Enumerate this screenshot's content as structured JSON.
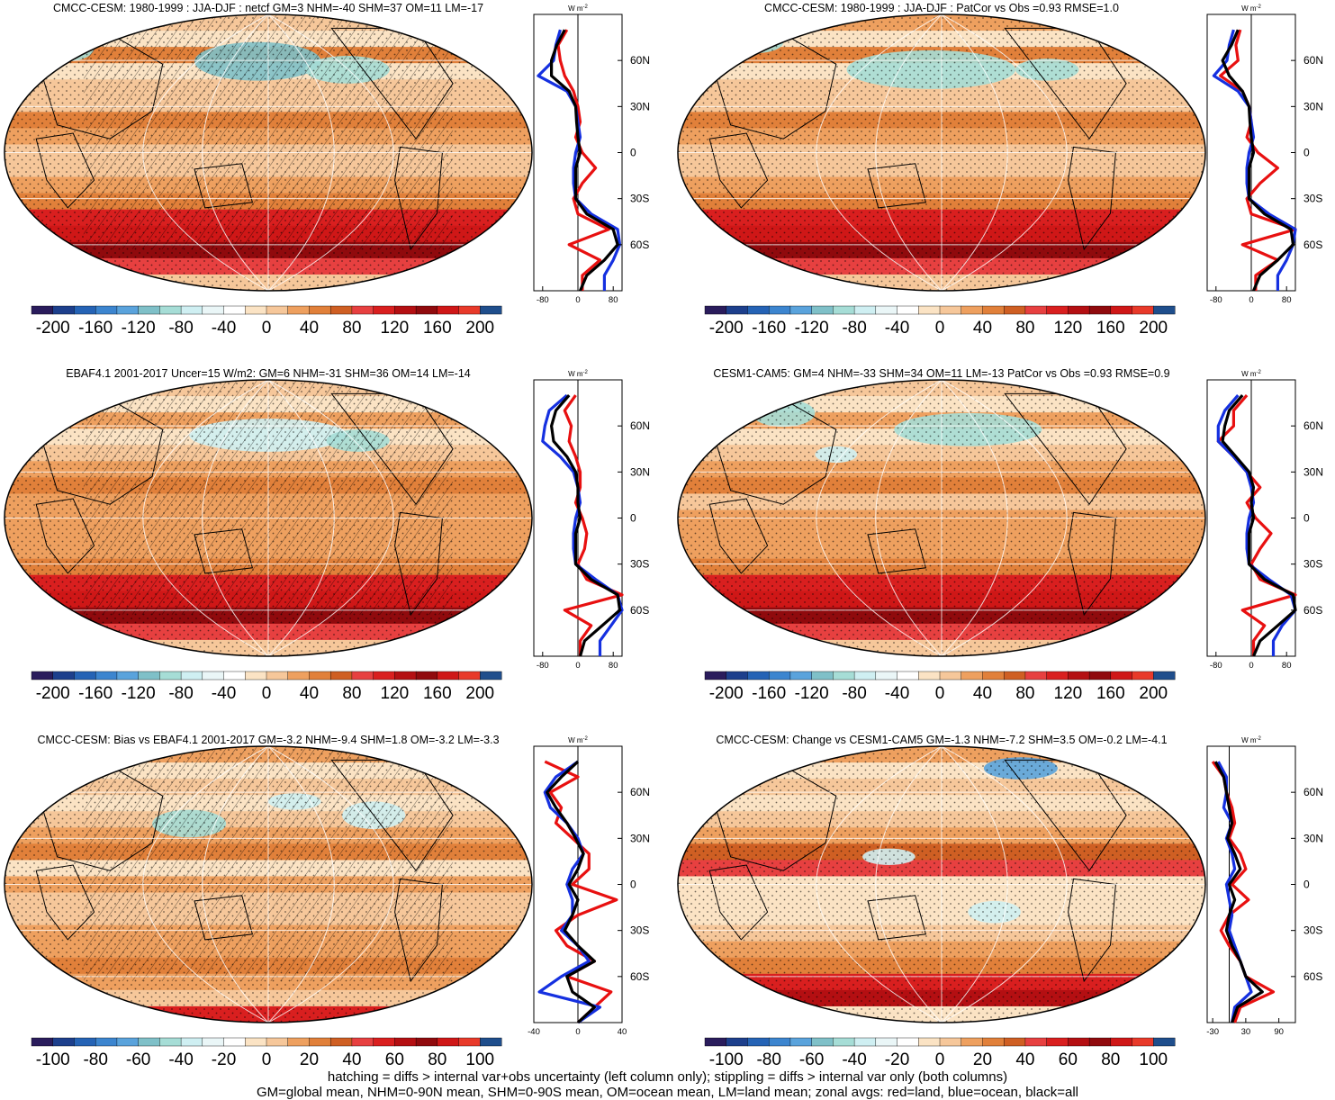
{
  "palettes": {
    "diverging_22": [
      "#2a1c5c",
      "#1d3f8c",
      "#2563b5",
      "#3c85cf",
      "#5aa3dc",
      "#7fc0c8",
      "#a6ddd6",
      "#cfeff2",
      "#eaf6f7",
      "#ffffff",
      "#fbe3c4",
      "#f6c79a",
      "#eea05f",
      "#e1803a",
      "#cf5f23",
      "#e74040",
      "#d91f1f",
      "#b40f12",
      "#900a0d",
      "#cf1717",
      "#e83a2a",
      "#1f4e8c"
    ]
  },
  "colorbars": {
    "full": [
      "-200",
      "-160",
      "-120",
      "-80",
      "-40",
      "0",
      "40",
      "80",
      "120",
      "160",
      "200"
    ],
    "diff_left": [
      "-100",
      "-80",
      "-60",
      "-40",
      "-20",
      "0",
      "20",
      "40",
      "60",
      "80",
      "100"
    ],
    "diff_right": [
      "-100",
      "-80",
      "-60",
      "-40",
      "-20",
      "0",
      "20",
      "40",
      "60",
      "80",
      "100"
    ]
  },
  "zonal_units": "W m",
  "zonal_units_exp": "-2",
  "lat_ticks": [
    "60N",
    "30N",
    "0",
    "30S",
    "60S"
  ],
  "zonal_ticks": {
    "full": [
      "-80",
      "0",
      "80"
    ],
    "diff_left": [
      "-40",
      "0",
      "40"
    ],
    "diff_right": [
      "-30",
      "30",
      "90"
    ]
  },
  "panels": [
    {
      "id": "p1",
      "title": "CMCC-CESM: 1980-1999 : JJA-DJF : netcf GM=3 NHM=-40 SHM=37 OM=11 LM=-17",
      "hatch": true,
      "mode": "full"
    },
    {
      "id": "p2",
      "title": "CMCC-CESM: 1980-1999 : JJA-DJF : PatCor vs Obs =0.93 RMSE=1.0",
      "hatch": false,
      "mode": "full"
    },
    {
      "id": "p3",
      "title": "EBAF4.1 2001-2017 Uncer=15 W/m2: GM=6 NHM=-31 SHM=36 OM=14 LM=-14",
      "hatch": true,
      "mode": "full"
    },
    {
      "id": "p4",
      "title": "CESM1-CAM5: GM=4 NHM=-33 SHM=34 OM=11 LM=-13 PatCor vs Obs =0.93 RMSE=0.9",
      "hatch": false,
      "mode": "full"
    },
    {
      "id": "p5",
      "title": "CMCC-CESM: Bias vs EBAF4.1 2001-2017 GM=-3.2 NHM=-9.4 SHM=1.8 OM=-3.2 LM=-3.3",
      "hatch": true,
      "mode": "diff"
    },
    {
      "id": "p6",
      "title": "CMCC-CESM: Change vs CESM1-CAM5 GM=-1.3 NHM=-7.2 SHM=3.5 OM=-0.2 LM=-4.1",
      "hatch": false,
      "mode": "diff"
    }
  ],
  "chart_data": [
    {
      "type": "heatmap",
      "title": "CMCC-CESM: 1980-1999 : JJA-DJF : netcf GM=3 NHM=-40 SHM=37 OM=11 LM=-17",
      "colorbar_ticks": [
        -200,
        -160,
        -120,
        -80,
        -40,
        0,
        40,
        80,
        120,
        160,
        200
      ],
      "zonal_profile": {
        "ylim": [
          -90,
          90
        ],
        "xlim": [
          -100,
          100
        ],
        "xticks": [
          -80,
          0,
          80
        ],
        "lat": [
          80,
          70,
          60,
          50,
          40,
          30,
          20,
          10,
          0,
          -10,
          -20,
          -30,
          -40,
          -50,
          -60,
          -70,
          -80,
          -90
        ],
        "series": [
          {
            "name": "red=land",
            "values": [
              -25,
              -45,
              -40,
              -30,
              -10,
              0,
              5,
              -5,
              10,
              40,
              10,
              -10,
              0,
              70,
              -20,
              50,
              10,
              10
            ]
          },
          {
            "name": "blue=ocean",
            "values": [
              -40,
              -50,
              -55,
              -90,
              -25,
              -5,
              0,
              5,
              -5,
              -10,
              -10,
              -5,
              30,
              90,
              95,
              80,
              60,
              60
            ]
          },
          {
            "name": "black=all",
            "values": [
              -30,
              -48,
              -60,
              -60,
              -20,
              -5,
              -3,
              0,
              5,
              -5,
              -5,
              -5,
              20,
              80,
              90,
              60,
              20,
              5
            ]
          }
        ]
      }
    },
    {
      "type": "heatmap",
      "title": "CMCC-CESM: 1980-1999 : JJA-DJF : PatCor vs Obs =0.93 RMSE=1.0",
      "colorbar_ticks": [
        -200,
        -160,
        -120,
        -80,
        -40,
        0,
        40,
        80,
        120,
        160,
        200
      ],
      "zonal_profile": {
        "ylim": [
          -90,
          90
        ],
        "xlim": [
          -100,
          100
        ],
        "xticks": [
          -80,
          0,
          80
        ],
        "lat": [
          80,
          70,
          60,
          50,
          40,
          30,
          20,
          10,
          0,
          -10,
          -20,
          -30,
          -40,
          -50,
          -60,
          -70,
          -80,
          -90
        ],
        "series": [
          {
            "name": "red=land",
            "values": [
              -25,
              -35,
              -30,
              -70,
              -20,
              -5,
              0,
              -10,
              15,
              60,
              20,
              -10,
              0,
              100,
              -20,
              60,
              10,
              10
            ]
          },
          {
            "name": "blue=ocean",
            "values": [
              -40,
              -50,
              -55,
              -85,
              -30,
              -5,
              0,
              5,
              -5,
              -10,
              -10,
              -5,
              40,
              100,
              95,
              80,
              60,
              60
            ]
          },
          {
            "name": "black=all",
            "values": [
              -30,
              -45,
              -65,
              -50,
              -20,
              -5,
              -3,
              0,
              5,
              -5,
              -5,
              -5,
              30,
              90,
              95,
              60,
              20,
              5
            ]
          }
        ]
      }
    },
    {
      "type": "heatmap",
      "title": "EBAF4.1 2001-2017 Uncer=15 W/m2: GM=6 NHM=-31 SHM=36 OM=14 LM=-14",
      "colorbar_ticks": [
        -200,
        -160,
        -120,
        -80,
        -40,
        0,
        40,
        80,
        120,
        160,
        200
      ],
      "zonal_profile": {
        "ylim": [
          -90,
          90
        ],
        "xlim": [
          -100,
          100
        ],
        "xticks": [
          -80,
          0,
          80
        ],
        "lat": [
          80,
          70,
          60,
          50,
          40,
          30,
          20,
          10,
          0,
          -10,
          -20,
          -30,
          -40,
          -50,
          -60,
          -70,
          -80,
          -90
        ],
        "series": [
          {
            "name": "red=land",
            "values": [
              -5,
              -30,
              -15,
              -20,
              -5,
              5,
              5,
              -5,
              10,
              20,
              15,
              0,
              20,
              100,
              -30,
              30,
              5,
              5
            ]
          },
          {
            "name": "blue=ocean",
            "values": [
              -25,
              -65,
              -75,
              -80,
              -40,
              -10,
              0,
              5,
              -5,
              -10,
              -10,
              -5,
              40,
              90,
              100,
              75,
              50,
              50
            ]
          },
          {
            "name": "black=all",
            "values": [
              -20,
              -50,
              -60,
              -55,
              -25,
              -5,
              0,
              0,
              5,
              -5,
              -5,
              -5,
              30,
              90,
              95,
              55,
              15,
              5
            ]
          }
        ]
      }
    },
    {
      "type": "heatmap",
      "title": "CESM1-CAM5: GM=4 NHM=-33 SHM=34 OM=11 LM=-13 PatCor vs Obs =0.93 RMSE=0.9",
      "colorbar_ticks": [
        -200,
        -160,
        -120,
        -80,
        -40,
        0,
        40,
        80,
        120,
        160,
        200
      ],
      "zonal_profile": {
        "ylim": [
          -90,
          90
        ],
        "xlim": [
          -100,
          100
        ],
        "xticks": [
          -80,
          0,
          80
        ],
        "lat": [
          80,
          70,
          60,
          50,
          40,
          30,
          20,
          10,
          0,
          -10,
          -20,
          -30,
          -40,
          -50,
          -60,
          -70,
          -80,
          -90
        ],
        "series": [
          {
            "name": "red=land",
            "values": [
              -10,
              -40,
              -40,
              -75,
              -40,
              -10,
              20,
              -10,
              10,
              45,
              20,
              0,
              20,
              100,
              -20,
              30,
              5,
              5
            ]
          },
          {
            "name": "blue=ocean",
            "values": [
              -30,
              -60,
              -75,
              -75,
              -40,
              -10,
              0,
              5,
              -5,
              -10,
              -10,
              -5,
              40,
              90,
              100,
              70,
              50,
              50
            ]
          },
          {
            "name": "black=all",
            "values": [
              -20,
              -50,
              -60,
              -65,
              -35,
              -5,
              5,
              0,
              5,
              -5,
              -5,
              -5,
              30,
              95,
              100,
              60,
              20,
              5
            ]
          }
        ]
      }
    },
    {
      "type": "heatmap",
      "title": "CMCC-CESM: Bias vs EBAF4.1 2001-2017 GM=-3.2 NHM=-9.4 SHM=1.8 OM=-3.2 LM=-3.3",
      "colorbar_ticks": [
        -100,
        -80,
        -60,
        -40,
        -20,
        0,
        20,
        40,
        60,
        80,
        100
      ],
      "zonal_profile": {
        "ylim": [
          -90,
          90
        ],
        "xlim": [
          -40,
          40
        ],
        "xticks": [
          -40,
          0,
          40
        ],
        "lat": [
          80,
          70,
          60,
          50,
          40,
          30,
          20,
          10,
          0,
          -10,
          -20,
          -30,
          -40,
          -50,
          -60,
          -70,
          -80,
          -90
        ],
        "series": [
          {
            "name": "red=land",
            "values": [
              -30,
              0,
              -25,
              -15,
              -20,
              -5,
              10,
              10,
              -5,
              35,
              0,
              -20,
              -10,
              15,
              -10,
              30,
              15,
              0
            ]
          },
          {
            "name": "blue=ocean",
            "values": [
              0,
              -20,
              -30,
              -25,
              -10,
              0,
              5,
              -5,
              -10,
              -5,
              -5,
              -15,
              0,
              10,
              -15,
              -35,
              20,
              0
            ]
          },
          {
            "name": "black=all",
            "values": [
              0,
              -15,
              -28,
              -20,
              -10,
              -2,
              5,
              0,
              -8,
              0,
              -5,
              -12,
              0,
              15,
              -10,
              -5,
              15,
              0
            ]
          }
        ]
      }
    },
    {
      "type": "heatmap",
      "title": "CMCC-CESM: Change vs CESM1-CAM5 GM=-1.3 NHM=-7.2 SHM=3.5 OM=-0.2 LM=-4.1",
      "colorbar_ticks": [
        -100,
        -80,
        -60,
        -40,
        -20,
        0,
        20,
        40,
        60,
        80,
        100
      ],
      "zonal_profile": {
        "ylim": [
          -90,
          90
        ],
        "xlim": [
          -40,
          120
        ],
        "xticks": [
          -30,
          30,
          90
        ],
        "lat": [
          80,
          70,
          60,
          50,
          40,
          30,
          20,
          10,
          0,
          -10,
          -20,
          -30,
          -40,
          -50,
          -60,
          -70,
          -80,
          -90
        ],
        "series": [
          {
            "name": "red=land",
            "values": [
              -30,
              -10,
              -5,
              5,
              10,
              0,
              20,
              30,
              5,
              35,
              0,
              -15,
              0,
              20,
              30,
              80,
              20,
              10
            ]
          },
          {
            "name": "blue=ocean",
            "values": [
              -20,
              -5,
              -5,
              -10,
              5,
              -5,
              5,
              10,
              -5,
              0,
              5,
              0,
              10,
              20,
              30,
              40,
              10,
              5
            ]
          },
          {
            "name": "black=all",
            "values": [
              -25,
              -10,
              -5,
              0,
              5,
              -3,
              10,
              20,
              0,
              10,
              0,
              -5,
              5,
              20,
              30,
              60,
              15,
              5
            ]
          }
        ]
      }
    }
  ],
  "footer": {
    "line1": "hatching = diffs > internal var+obs uncertainty (left column only); stippling = diffs > internal var only (both columns)",
    "line2": "GM=global mean, NHM=0-90N mean, SHM=0-90S mean, OM=ocean mean, LM=land mean; zonal avgs: red=land, blue=ocean, black=all"
  }
}
